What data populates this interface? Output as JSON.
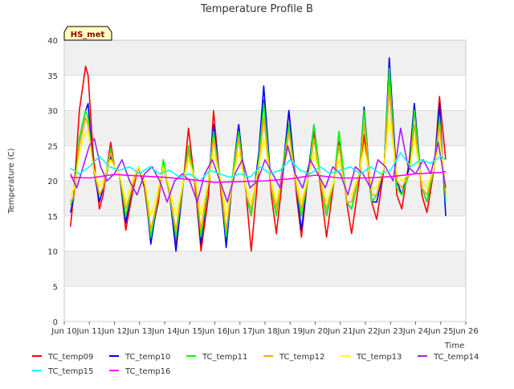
{
  "chart_data": {
    "type": "line",
    "title": "Temperature Profile B",
    "xlabel": "Time",
    "ylabel": "Temperature (C)",
    "ylim": [
      0,
      40
    ],
    "xlim": [
      0,
      16
    ],
    "x_unit": "days since Jun 10 00:00",
    "grid": true,
    "legend_placement": "bottom",
    "station_label": "HS_met",
    "yticks": [
      "0",
      "5",
      "10",
      "15",
      "20",
      "25",
      "30",
      "35",
      "40"
    ],
    "xtick_positions": [
      0,
      1,
      2,
      3,
      4,
      5,
      6,
      7,
      8,
      9,
      10,
      11,
      12,
      13,
      14,
      15,
      16
    ],
    "xticks": [
      "Jun 10",
      "Jun 11",
      "Jun 12",
      "Jun 13",
      "Jun 14",
      "Jun 15",
      "Jun 16",
      "Jun 17",
      "Jun 18",
      "Jun 19",
      "Jun 20",
      "Jun 21",
      "Jun 22",
      "Jun 23",
      "Jun 24",
      "Jun 25",
      "Jun 26"
    ],
    "series": [
      {
        "name": "TC_temp09",
        "color": "#ff0000",
        "x": [
          0.25,
          0.4,
          0.6,
          0.85,
          0.95,
          1.15,
          1.4,
          1.55,
          1.85,
          2.0,
          2.2,
          2.45,
          2.7,
          2.95,
          3.2,
          3.45,
          3.75,
          3.95,
          4.2,
          4.45,
          4.75,
          4.95,
          5.25,
          5.45,
          5.75,
          5.95,
          6.25,
          6.45,
          6.75,
          6.95,
          7.25,
          7.45,
          7.75,
          7.95,
          8.25,
          8.45,
          8.75,
          8.95,
          9.25,
          9.45,
          9.75,
          9.95,
          10.25,
          10.45,
          10.75,
          10.95,
          11.25,
          11.45,
          11.75,
          11.95,
          12.25,
          12.45,
          12.75,
          12.95,
          13.25,
          13.45,
          13.75,
          13.95,
          14.25,
          14.45,
          14.75,
          14.95,
          15.2
        ],
        "y": [
          13.5,
          19,
          30,
          36.3,
          35,
          24,
          16,
          18,
          25.5,
          22,
          21,
          13,
          18,
          22,
          19,
          12,
          17,
          23,
          18,
          10.8,
          20,
          27.5,
          18,
          10,
          18,
          30,
          18,
          11,
          22,
          28,
          18,
          10,
          22,
          31.5,
          18,
          12.5,
          22,
          30,
          18,
          12,
          22,
          27,
          18,
          12,
          20,
          25.5,
          17,
          12.5,
          20,
          26.5,
          17,
          14.5,
          22,
          35.5,
          18,
          16,
          23,
          31,
          18,
          15.5,
          22,
          32,
          23
        ]
      },
      {
        "name": "TC_temp10",
        "color": "#0000ff",
        "x": [
          0.25,
          0.4,
          0.6,
          0.85,
          0.95,
          1.15,
          1.4,
          1.55,
          1.85,
          2.0,
          2.2,
          2.45,
          2.7,
          2.95,
          3.2,
          3.45,
          3.75,
          3.95,
          4.2,
          4.45,
          4.75,
          4.95,
          5.25,
          5.45,
          5.75,
          5.95,
          6.25,
          6.45,
          6.75,
          6.95,
          7.25,
          7.45,
          7.75,
          7.95,
          8.25,
          8.45,
          8.75,
          8.95,
          9.25,
          9.45,
          9.75,
          9.95,
          10.25,
          10.45,
          10.75,
          10.95,
          11.25,
          11.45,
          11.75,
          11.95,
          12.25,
          12.45,
          12.75,
          12.95,
          13.25,
          13.45,
          13.75,
          13.95,
          14.25,
          14.45,
          14.75,
          14.95,
          15.2
        ],
        "y": [
          15.5,
          18,
          26,
          30,
          31,
          22,
          17,
          19,
          23.5,
          22,
          21,
          14,
          19,
          22,
          20,
          11,
          18,
          22,
          18,
          10,
          20,
          25,
          19,
          11,
          20,
          28,
          19,
          10.5,
          22,
          28,
          18,
          15,
          24,
          33.5,
          19,
          16,
          23,
          30,
          19,
          13,
          22,
          28,
          19,
          15,
          20,
          27,
          17,
          16,
          21,
          30.5,
          17,
          17,
          22,
          37.5,
          20,
          18,
          22,
          31,
          19,
          17,
          22,
          31,
          15
        ]
      },
      {
        "name": "TC_temp11",
        "color": "#00ff00",
        "x": [
          0.25,
          0.4,
          0.6,
          0.85,
          0.95,
          1.15,
          1.4,
          1.55,
          1.85,
          2.0,
          2.2,
          2.45,
          2.7,
          2.95,
          3.2,
          3.45,
          3.75,
          3.95,
          4.2,
          4.45,
          4.75,
          4.95,
          5.25,
          5.45,
          5.75,
          5.95,
          6.25,
          6.45,
          6.75,
          6.95,
          7.25,
          7.45,
          7.75,
          7.95,
          8.25,
          8.45,
          8.75,
          8.95,
          9.25,
          9.45,
          9.75,
          9.95,
          10.25,
          10.45,
          10.75,
          10.95,
          11.25,
          11.45,
          11.75,
          11.95,
          12.25,
          12.45,
          12.75,
          12.95,
          13.25,
          13.45,
          13.75,
          13.95,
          14.25,
          14.45,
          14.75,
          14.95,
          15.2
        ],
        "y": [
          16.5,
          18,
          26,
          30,
          29,
          22,
          18,
          19,
          24.5,
          22,
          21,
          15,
          19,
          22,
          20,
          12,
          18,
          23,
          18,
          12,
          20,
          25,
          19,
          12,
          20,
          27,
          19,
          12,
          22,
          27,
          18,
          15,
          23,
          31,
          19,
          15,
          23,
          28,
          19,
          15,
          21,
          28,
          19,
          15,
          20,
          27,
          17,
          16,
          21,
          30,
          17,
          18,
          22,
          36,
          19,
          18,
          21,
          30,
          19,
          17,
          22,
          29,
          17
        ]
      },
      {
        "name": "TC_temp12",
        "color": "#ffa500",
        "x": [
          0.25,
          0.4,
          0.6,
          0.85,
          0.95,
          1.15,
          1.4,
          1.55,
          1.85,
          2.0,
          2.2,
          2.45,
          2.7,
          2.95,
          3.2,
          3.45,
          3.75,
          3.95,
          4.2,
          4.45,
          4.75,
          4.95,
          5.25,
          5.45,
          5.75,
          5.95,
          6.25,
          6.45,
          6.75,
          6.95,
          7.25,
          7.45,
          7.75,
          7.95,
          8.25,
          8.45,
          8.75,
          8.95,
          9.25,
          9.45,
          9.75,
          9.95,
          10.25,
          10.45,
          10.75,
          10.95,
          11.25,
          11.45,
          11.75,
          11.95,
          12.25,
          12.45,
          12.75,
          12.95,
          13.25,
          13.45,
          13.75,
          13.95,
          14.25,
          14.45,
          14.75,
          14.95,
          15.2
        ],
        "y": [
          17,
          18,
          25,
          29,
          28,
          22,
          18,
          19,
          24,
          22,
          21,
          16,
          19,
          22,
          20,
          13,
          18,
          22,
          18,
          13,
          20,
          24,
          19,
          13,
          20,
          26,
          19,
          13,
          21,
          26,
          18,
          16,
          22,
          29,
          19,
          16,
          22,
          27,
          19,
          16,
          21,
          26,
          19,
          16,
          20,
          25,
          17,
          17,
          21,
          28,
          18,
          18,
          22,
          33,
          20,
          19,
          21,
          28,
          19,
          18,
          22,
          28,
          18
        ]
      },
      {
        "name": "TC_temp13",
        "color": "#ffff00",
        "x": [
          0.25,
          0.4,
          0.6,
          0.85,
          0.95,
          1.15,
          1.4,
          1.55,
          1.85,
          2.0,
          2.2,
          2.45,
          2.7,
          2.95,
          3.2,
          3.45,
          3.75,
          3.95,
          4.2,
          4.45,
          4.75,
          4.95,
          5.25,
          5.45,
          5.75,
          5.95,
          6.25,
          6.45,
          6.75,
          6.95,
          7.25,
          7.45,
          7.75,
          7.95,
          8.25,
          8.45,
          8.75,
          8.95,
          9.25,
          9.45,
          9.75,
          9.95,
          10.25,
          10.45,
          10.75,
          10.95,
          11.25,
          11.45,
          11.75,
          11.95,
          12.25,
          12.45,
          12.75,
          12.95,
          13.25,
          13.45,
          13.75,
          13.95,
          14.25,
          14.45,
          14.75,
          14.95,
          15.2
        ],
        "y": [
          18,
          19,
          24,
          27,
          27,
          22,
          19,
          20,
          23,
          22,
          21,
          17,
          20,
          22,
          20,
          15,
          19,
          22,
          19,
          15,
          20,
          23,
          20,
          15,
          20,
          24,
          20,
          15,
          21,
          24,
          19,
          17,
          22,
          26,
          20,
          17,
          22,
          25,
          20,
          17,
          21,
          24,
          20,
          17,
          20,
          23,
          18,
          18,
          21,
          25,
          19,
          19,
          22,
          29,
          21,
          20,
          21,
          26,
          20,
          19,
          22,
          26,
          19
        ]
      },
      {
        "name": "TC_temp14",
        "color": "#a020f0",
        "x": [
          0.25,
          0.5,
          0.75,
          1.0,
          1.2,
          1.45,
          1.7,
          2.0,
          2.3,
          2.6,
          2.9,
          3.2,
          3.5,
          3.8,
          4.1,
          4.4,
          4.7,
          5.0,
          5.3,
          5.6,
          5.9,
          6.2,
          6.5,
          6.8,
          7.1,
          7.4,
          7.7,
          8.0,
          8.3,
          8.6,
          8.9,
          9.2,
          9.5,
          9.8,
          10.1,
          10.4,
          10.7,
          11.0,
          11.3,
          11.6,
          11.9,
          12.2,
          12.5,
          12.8,
          13.1,
          13.4,
          13.7,
          14.0,
          14.3,
          14.6,
          14.9,
          15.2
        ],
        "y": [
          21,
          19,
          22,
          25,
          26,
          22,
          20,
          21,
          23,
          20,
          18,
          21,
          22,
          20,
          17,
          20,
          21,
          20,
          17,
          21,
          23,
          20,
          17,
          21,
          23,
          19,
          20,
          23,
          21,
          19,
          25,
          21,
          19,
          23,
          21,
          19,
          22,
          21,
          18,
          22,
          21,
          19,
          23,
          22,
          20,
          27.5,
          22,
          21,
          23,
          21,
          25.5,
          19
        ]
      },
      {
        "name": "TC_temp15",
        "color": "#00ffff",
        "x": [
          0.25,
          0.6,
          1.0,
          1.4,
          1.8,
          2.2,
          2.6,
          3.0,
          3.4,
          3.8,
          4.2,
          4.6,
          5.0,
          5.4,
          5.8,
          6.2,
          6.6,
          7.0,
          7.4,
          7.8,
          8.2,
          8.6,
          9.0,
          9.4,
          9.8,
          10.2,
          10.6,
          11.0,
          11.4,
          11.8,
          12.2,
          12.6,
          13.0,
          13.4,
          13.8,
          14.2,
          14.6,
          15.0,
          15.2
        ],
        "y": [
          21.8,
          21,
          22,
          23.5,
          22,
          21.5,
          22,
          21,
          22,
          21,
          21.5,
          20.5,
          21,
          20,
          21.5,
          21,
          20.5,
          21,
          20.5,
          22,
          21,
          21.5,
          23,
          21.5,
          21,
          22,
          21,
          21.5,
          22,
          21,
          22,
          21,
          21.5,
          24,
          22,
          23,
          22.5,
          23.5,
          23
        ]
      },
      {
        "name": "TC_temp16",
        "color": "#ff00ff",
        "x": [
          0.25,
          1.0,
          2.0,
          3.0,
          4.0,
          5.0,
          6.0,
          7.0,
          8.0,
          9.0,
          10.0,
          11.0,
          12.0,
          13.0,
          14.0,
          15.0,
          15.2
        ],
        "y": [
          20.5,
          20.4,
          20.9,
          20.7,
          20.5,
          20.2,
          19.8,
          19.9,
          20.0,
          20.3,
          20.8,
          20.4,
          20.4,
          20.6,
          21.0,
          21.2,
          21.3
        ]
      }
    ]
  }
}
